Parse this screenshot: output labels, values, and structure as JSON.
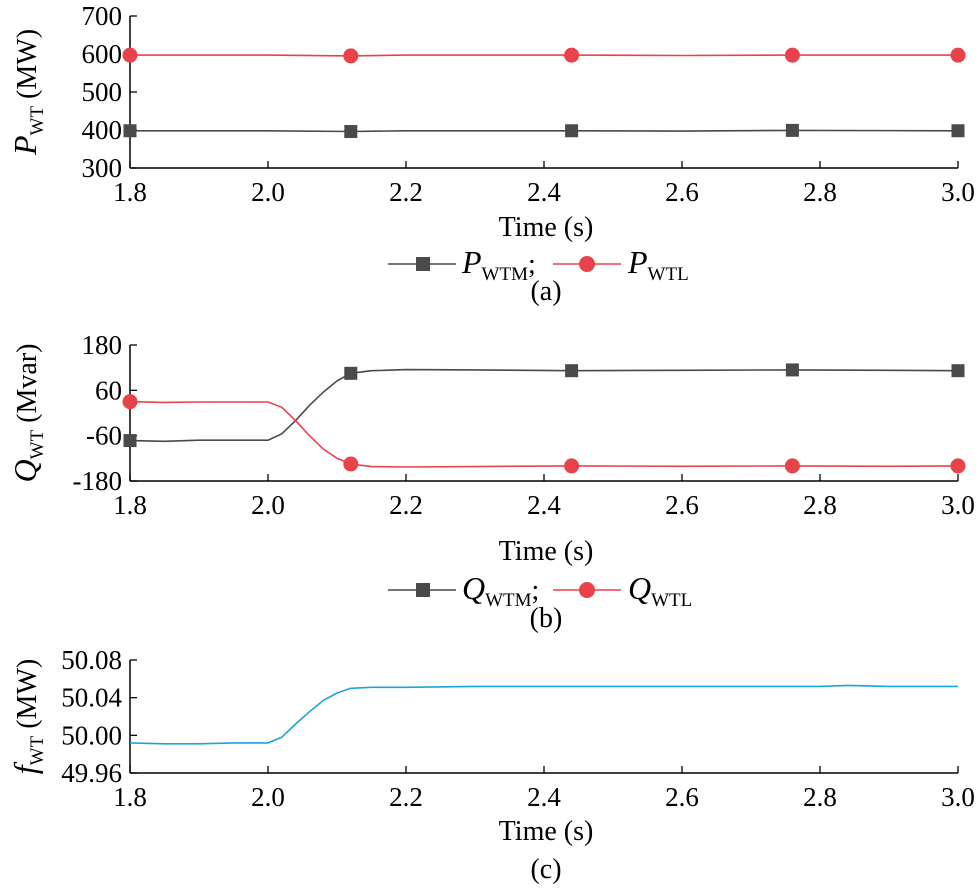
{
  "chart_data": [
    {
      "type": "line",
      "panel_label": "(a)",
      "xlabel": "Time (s)",
      "ylabel": {
        "main": "P",
        "sub": "WT",
        "unit": " (MW)"
      },
      "xlim": [
        1.8,
        3.0
      ],
      "ylim": [
        300,
        700
      ],
      "xticks": [
        "1.8",
        "2.0",
        "2.2",
        "2.4",
        "2.6",
        "2.8",
        "3.0"
      ],
      "yticks": [
        "300",
        "400",
        "500",
        "600",
        "700"
      ],
      "grid": false,
      "legend": "bottom",
      "legend_separator": ";",
      "series": [
        {
          "name": "P_WTM",
          "label_main": "P",
          "label_sub": "WTM",
          "color": "#4a4a4a",
          "marker": "square",
          "x": [
            1.8,
            2.0,
            2.12,
            2.2,
            2.44,
            2.6,
            2.76,
            3.0
          ],
          "y": [
            398,
            398,
            396,
            398,
            398,
            397,
            399,
            398
          ],
          "marker_x": [
            1.8,
            2.12,
            2.44,
            2.76,
            3.0
          ]
        },
        {
          "name": "P_WTL",
          "label_main": "P",
          "label_sub": "WTL",
          "color": "#e8434b",
          "marker": "circle",
          "x": [
            1.8,
            2.0,
            2.12,
            2.2,
            2.44,
            2.6,
            2.76,
            3.0
          ],
          "y": [
            597,
            597,
            595,
            597,
            597,
            596,
            597,
            597
          ],
          "marker_x": [
            1.8,
            2.12,
            2.44,
            2.76,
            3.0
          ]
        }
      ]
    },
    {
      "type": "line",
      "panel_label": "(b)",
      "xlabel": "Time (s)",
      "ylabel": {
        "main": "Q",
        "sub": "WT",
        "unit": " (Mvar)"
      },
      "xlim": [
        1.8,
        3.0
      ],
      "ylim": [
        -180,
        180
      ],
      "xticks": [
        "1.8",
        "2.0",
        "2.2",
        "2.4",
        "2.6",
        "2.8",
        "3.0"
      ],
      "yticks": [
        "-180",
        "-60",
        "60",
        "180"
      ],
      "grid": false,
      "legend": "bottom",
      "legend_separator": ";",
      "series": [
        {
          "name": "Q_WTM",
          "label_main": "Q",
          "label_sub": "WTM",
          "color": "#4a4a4a",
          "marker": "square",
          "x": [
            1.8,
            1.85,
            1.9,
            1.95,
            2.0,
            2.02,
            2.04,
            2.06,
            2.08,
            2.1,
            2.12,
            2.15,
            2.2,
            2.3,
            2.44,
            2.6,
            2.76,
            2.9,
            3.0
          ],
          "y": [
            -73,
            -75,
            -72,
            -72,
            -72,
            -55,
            -20,
            20,
            55,
            85,
            105,
            112,
            115,
            114,
            112,
            113,
            114,
            113,
            112
          ],
          "marker_x": [
            1.8,
            2.12,
            2.44,
            2.76,
            3.0
          ]
        },
        {
          "name": "Q_WTL",
          "label_main": "Q",
          "label_sub": "WTL",
          "color": "#e8434b",
          "marker": "circle",
          "x": [
            1.8,
            1.85,
            1.9,
            1.95,
            2.0,
            2.02,
            2.04,
            2.06,
            2.08,
            2.1,
            2.12,
            2.15,
            2.2,
            2.3,
            2.44,
            2.6,
            2.76,
            2.9,
            3.0
          ],
          "y": [
            30,
            28,
            29,
            29,
            29,
            15,
            -20,
            -60,
            -95,
            -120,
            -135,
            -142,
            -143,
            -142,
            -140,
            -141,
            -140,
            -141,
            -140
          ],
          "marker_x": [
            1.8,
            2.12,
            2.44,
            2.76,
            3.0
          ]
        }
      ]
    },
    {
      "type": "line",
      "panel_label": "(c)",
      "xlabel": "Time (s)",
      "ylabel": {
        "main": "f",
        "sub": "WT",
        "unit": " (MW)"
      },
      "xlim": [
        1.8,
        3.0
      ],
      "ylim": [
        49.96,
        50.08
      ],
      "xticks": [
        "1.8",
        "2.0",
        "2.2",
        "2.4",
        "2.6",
        "2.8",
        "3.0"
      ],
      "yticks": [
        "49.96",
        "50.00",
        "50.04",
        "50.08"
      ],
      "grid": false,
      "series": [
        {
          "name": "f_WT",
          "color": "#1ca5d8",
          "marker": "none",
          "x": [
            1.8,
            1.85,
            1.9,
            1.95,
            2.0,
            2.02,
            2.04,
            2.06,
            2.08,
            2.1,
            2.12,
            2.15,
            2.2,
            2.3,
            2.4,
            2.5,
            2.6,
            2.7,
            2.8,
            2.84,
            2.9,
            3.0
          ],
          "y": [
            49.992,
            49.991,
            49.991,
            49.992,
            49.992,
            49.998,
            50.012,
            50.025,
            50.037,
            50.045,
            50.05,
            50.051,
            50.051,
            50.052,
            50.052,
            50.052,
            50.052,
            50.052,
            50.052,
            50.053,
            50.052,
            50.052
          ]
        }
      ]
    }
  ]
}
